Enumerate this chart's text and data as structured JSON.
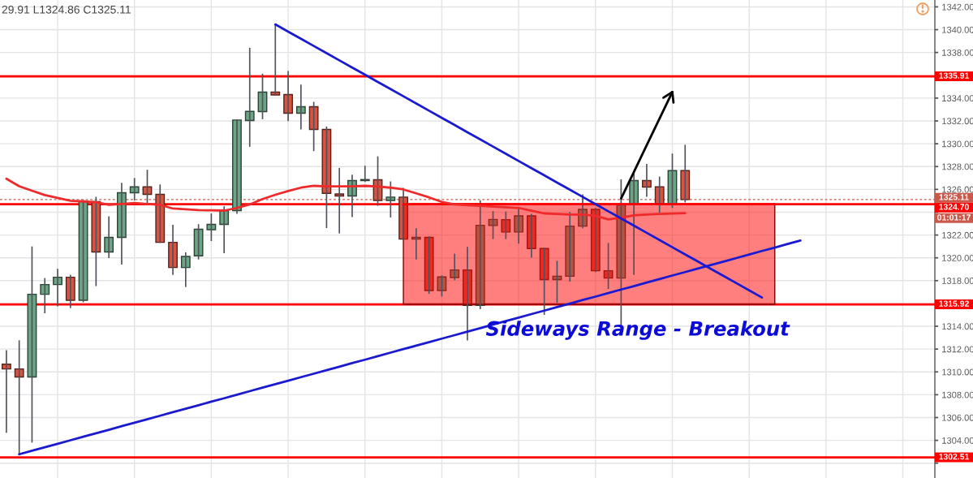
{
  "chart_data": {
    "type": "candlestick",
    "categories": [
      null,
      null,
      null,
      null,
      null,
      null,
      null,
      null,
      null,
      null,
      null,
      null,
      null,
      null,
      null,
      null,
      null,
      null,
      null,
      null,
      null,
      null,
      null,
      null,
      null,
      null,
      null,
      null,
      null,
      null,
      null,
      null,
      null,
      null,
      null,
      null,
      null,
      null,
      null,
      null,
      null,
      null,
      null,
      null,
      null,
      null,
      null,
      null,
      null,
      null,
      null,
      null,
      null,
      null,
      null,
      null,
      null,
      null,
      null,
      null,
      null,
      null,
      null,
      null,
      null,
      null,
      null,
      null,
      null,
      null,
      null,
      null,
      null
    ],
    "ohlc": [
      [
        1310.68,
        1311.91,
        1304.66,
        1310.26
      ],
      [
        1310.26,
        1312.77,
        1302.78,
        1309.56
      ],
      [
        1309.56,
        1321.0,
        1303.8,
        1316.8
      ],
      [
        1316.8,
        1318.23,
        1315.14,
        1317.66
      ],
      [
        1317.66,
        1319.03,
        1315.74,
        1318.3
      ],
      [
        1318.3,
        1318.51,
        1315.59,
        1316.28
      ],
      [
        1316.28,
        1325.08,
        1316.11,
        1324.96
      ],
      [
        1324.92,
        1325.35,
        1317.52,
        1320.51
      ],
      [
        1320.51,
        1323.64,
        1319.98,
        1321.79
      ],
      [
        1321.79,
        1326.58,
        1319.41,
        1325.7
      ],
      [
        1325.7,
        1327.0,
        1325.03,
        1326.22
      ],
      [
        1326.22,
        1327.72,
        1324.8,
        1325.56
      ],
      [
        1325.56,
        1326.43,
        1321.31,
        1321.36
      ],
      [
        1321.36,
        1322.9,
        1318.51,
        1319.15
      ],
      [
        1319.15,
        1320.48,
        1317.44,
        1320.12
      ],
      [
        1320.17,
        1322.95,
        1319.86,
        1322.5
      ],
      [
        1322.47,
        1323.89,
        1321.47,
        1322.93
      ],
      [
        1322.93,
        1324.51,
        1320.41,
        1324.14
      ],
      [
        1324.14,
        1332.15,
        1323.85,
        1332.08
      ],
      [
        1332.04,
        1338.41,
        1329.73,
        1332.84
      ],
      [
        1332.82,
        1336.14,
        1332.15,
        1334.53
      ],
      [
        1334.53,
        1340.46,
        1334.24,
        1334.28
      ],
      [
        1334.31,
        1336.38,
        1331.99,
        1332.68
      ],
      [
        1332.68,
        1335.19,
        1331.25,
        1333.25
      ],
      [
        1333.25,
        1333.67,
        1329.35,
        1331.25
      ],
      [
        1331.25,
        1331.51,
        1322.61,
        1325.65
      ],
      [
        1325.6,
        1327.88,
        1322.14,
        1325.42
      ],
      [
        1325.42,
        1327.29,
        1323.57,
        1326.77
      ],
      [
        1326.77,
        1328.07,
        1326.65,
        1326.86
      ],
      [
        1326.84,
        1328.9,
        1324.56,
        1325.03
      ],
      [
        1325.03,
        1326.7,
        1323.54,
        1325.32
      ],
      [
        1325.32,
        1326.13,
        1321.52,
        1321.64
      ],
      [
        1321.64,
        1322.59,
        1319.86,
        1321.79
      ],
      [
        1321.79,
        1321.88,
        1316.85,
        1317.13
      ],
      [
        1317.13,
        1318.46,
        1316.61,
        1318.32
      ],
      [
        1318.27,
        1320.36,
        1318.04,
        1318.94
      ],
      [
        1318.94,
        1320.95,
        1312.75,
        1315.83
      ],
      [
        1315.83,
        1325.03,
        1315.5,
        1322.85
      ],
      [
        1322.83,
        1324.09,
        1321.64,
        1323.37
      ],
      [
        1323.35,
        1324.06,
        1321.64,
        1322.26
      ],
      [
        1322.26,
        1324.44,
        1321.24,
        1323.68
      ],
      [
        1323.68,
        1323.85,
        1320.01,
        1320.81
      ],
      [
        1320.81,
        1320.88,
        1315.0,
        1318.09
      ],
      [
        1318.09,
        1319.74,
        1316.06,
        1318.39
      ],
      [
        1318.39,
        1324.01,
        1317.91,
        1322.78
      ],
      [
        1322.78,
        1325.56,
        1322.59,
        1324.25
      ],
      [
        1324.25,
        1324.37,
        1318.75,
        1318.87
      ],
      [
        1318.87,
        1321.31,
        1317.27,
        1318.23
      ],
      [
        1318.23,
        1326.88,
        1314.0,
        1324.63
      ],
      [
        1324.75,
        1327.41,
        1318.51,
        1326.77
      ],
      [
        1326.77,
        1328.23,
        1325.35,
        1326.2
      ],
      [
        1326.22,
        1327.12,
        1323.96,
        1324.75
      ],
      [
        1324.75,
        1329.14,
        1324.37,
        1327.64
      ],
      [
        1327.64,
        1329.91,
        1324.86,
        1325.11
      ],
      null,
      null,
      null,
      null,
      null,
      null,
      null,
      null,
      null,
      null,
      null,
      null,
      null,
      null,
      null,
      null,
      null,
      null,
      null
    ],
    "colors": [
      "#d75442",
      "#d75442",
      "#6ba583",
      "#6ba583",
      "#6ba583",
      "#d75442",
      "#6ba583",
      "#d75442",
      "#6ba583",
      "#6ba583",
      "#6ba583",
      "#d75442",
      "#d75442",
      "#d75442",
      "#6ba583",
      "#6ba583",
      "#6ba583",
      "#6ba583",
      "#6ba583",
      "#6ba583",
      "#6ba583",
      "#d75442",
      "#d75442",
      "#6ba583",
      "#d75442",
      "#d75442",
      "#d75442",
      "#6ba583",
      "#6ba583",
      "#d75442",
      "#6ba583",
      "#d75442",
      "#6ba583",
      "#d75442",
      "#6ba583",
      "#6ba583",
      "#d75442",
      "#6ba583",
      "#6ba583",
      "#d75442",
      "#6ba583",
      "#d75442",
      "#d75442",
      "#6ba583",
      "#6ba583",
      "#6ba583",
      "#d75442",
      "#d75442",
      "#6ba583",
      "#6ba583",
      "#d75442",
      "#d75442",
      "#6ba583",
      "#d75442",
      null,
      null,
      null,
      null,
      null,
      null,
      null,
      null,
      null,
      null,
      null,
      null,
      null,
      null,
      null,
      null,
      null,
      null,
      null
    ],
    "series": [
      {
        "type": "line",
        "color": "#ff0000",
        "values": [
          null,
          null,
          null,
          null,
          null,
          null,
          null,
          null,
          null,
          null,
          null,
          null,
          null,
          null,
          null,
          null,
          null,
          null,
          null,
          null,
          null,
          null,
          null,
          null,
          null,
          null,
          null,
          null,
          null,
          null,
          null,
          1324.7,
          1324.7,
          1324.7,
          1324.7,
          1324.7,
          1324.7,
          1324.7,
          1324.7,
          1324.7,
          1324.7,
          1324.7,
          1324.7,
          1324.7,
          1324.7,
          1324.7,
          1324.7,
          1324.7,
          1324.7,
          1324.7,
          1324.7,
          1324.7,
          1324.7,
          1324.7,
          1324.7,
          1324.7,
          1324.7,
          1324.7,
          1324.7,
          1324.7,
          1324.7,
          null,
          null,
          null,
          null,
          null,
          null,
          null,
          null,
          null,
          null,
          null,
          null
        ],
        "upper": [
          null,
          null,
          null,
          null,
          null,
          null,
          null,
          null,
          null,
          null,
          null,
          null,
          null,
          null,
          null,
          null,
          null,
          null,
          null,
          null,
          null,
          null,
          null,
          null,
          null,
          null,
          null,
          null,
          null,
          null,
          null,
          1324.7,
          1324.7,
          1324.7,
          1324.7,
          1324.7,
          1324.7,
          1324.7,
          1324.7,
          1324.7,
          1324.7,
          1324.7,
          1324.7,
          1324.7,
          1324.7,
          1324.7,
          1324.7,
          1324.7,
          1324.7,
          1324.7,
          1324.7,
          1324.7,
          1324.7,
          1324.7,
          1324.7,
          1324.7,
          1324.7,
          1324.7,
          1324.7,
          1324.7,
          1324.7,
          null,
          null,
          null,
          null,
          null,
          null,
          null,
          null,
          null,
          null,
          null,
          null
        ],
        "lower": [
          null,
          null,
          null,
          null,
          null,
          null,
          null,
          null,
          null,
          null,
          null,
          null,
          null,
          null,
          null,
          null,
          null,
          null,
          null,
          null,
          null,
          null,
          null,
          null,
          null,
          null,
          null,
          null,
          null,
          null,
          null,
          1315.92,
          1315.92,
          1315.92,
          1315.92,
          1315.92,
          1315.92,
          1315.92,
          1315.92,
          1315.92,
          1315.92,
          1315.92,
          1315.92,
          1315.92,
          1315.92,
          1315.92,
          1315.92,
          1315.92,
          1315.92,
          1315.92,
          1315.92,
          1315.92,
          1315.92,
          1315.92,
          1315.92,
          1315.92,
          1315.92,
          1315.92,
          1315.92,
          1315.92,
          1315.92,
          null,
          null,
          null,
          null,
          null,
          null,
          null,
          null,
          null,
          null,
          null,
          null
        ]
      },
      {
        "type": "line",
        "color": "#ee2a2a",
        "values": [
          1326.93,
          1326.27,
          1325.88,
          1325.5,
          1325.25,
          1325.0,
          1324.94,
          1324.87,
          1324.65,
          1324.72,
          1324.8,
          1324.72,
          1324.65,
          1324.32,
          1324.25,
          1324.18,
          1324.16,
          1324.14,
          1324.37,
          1324.68,
          1325.15,
          1325.53,
          1325.86,
          1326.15,
          1326.31,
          1326.27,
          1326.27,
          1326.27,
          1326.31,
          1326.25,
          1326.15,
          1325.99,
          1325.65,
          1325.3,
          1324.9,
          1324.68,
          1324.61,
          1324.55,
          1324.49,
          1324.43,
          1324.37,
          1324.13,
          1323.89,
          1323.85,
          1323.8,
          1323.8,
          1323.68,
          1323.37,
          1323.52,
          1323.73,
          1323.8,
          1323.85,
          1323.88,
          1323.92,
          null,
          null,
          null,
          null,
          null,
          null,
          null,
          null,
          null,
          null,
          null,
          null,
          null,
          null,
          null,
          null,
          null,
          null,
          null
        ]
      },
      {
        "type": "line",
        "color": "#1a1ad0",
        "values": [
          null,
          null,
          null,
          null,
          null,
          null,
          null,
          null,
          null,
          null,
          null,
          null,
          null,
          null,
          null,
          null,
          null,
          null,
          null,
          null,
          null,
          1340.46,
          1339.83,
          1339.2,
          1338.57,
          1337.94,
          1337.31,
          1336.68,
          1336.05,
          1335.42,
          1334.79,
          1334.16,
          1333.53,
          1332.9,
          1332.27,
          1331.64,
          1331.01,
          1330.38,
          1329.75,
          1329.12,
          1328.49,
          1327.86,
          1327.23,
          1326.6,
          1325.97,
          1325.34,
          1324.71,
          1324.08,
          1323.45,
          1322.82,
          1322.19,
          1321.56,
          1320.93,
          1320.3,
          1319.67,
          1319.04,
          1318.41,
          1317.78,
          1317.15,
          1316.52,
          null,
          null,
          null,
          null,
          null,
          null,
          null,
          null,
          null,
          null,
          null,
          null,
          null
        ]
      },
      {
        "type": "line",
        "color": "#1a1ad0",
        "values": [
          null,
          1302.78,
          1303.09,
          1303.39,
          1303.7,
          1304.01,
          1304.32,
          1304.62,
          1304.93,
          1305.24,
          1305.54,
          1305.85,
          1306.16,
          1306.47,
          1306.77,
          1307.08,
          1307.39,
          1307.69,
          1308.0,
          1308.31,
          1308.62,
          1308.92,
          1309.23,
          1309.54,
          1309.84,
          1310.15,
          1310.46,
          1310.77,
          1311.07,
          1311.38,
          1311.69,
          1312.0,
          1312.3,
          1312.61,
          1312.92,
          1313.22,
          1313.53,
          1313.84,
          1314.15,
          1314.45,
          1314.76,
          1315.07,
          1315.37,
          1315.68,
          1315.99,
          1316.3,
          1316.6,
          1316.91,
          1317.22,
          1317.52,
          1317.83,
          1318.14,
          1318.45,
          1318.75,
          1319.06,
          1319.37,
          1319.67,
          1319.98,
          1320.29,
          1320.6,
          1320.9,
          1321.21,
          1321.52,
          null,
          null,
          null,
          null,
          null,
          null,
          null,
          null,
          null,
          null
        ]
      },
      {
        "type": "line",
        "color": "#000000",
        "values": [
          null,
          null,
          null,
          null,
          null,
          null,
          null,
          null,
          null,
          null,
          null,
          null,
          null,
          null,
          null,
          null,
          null,
          null,
          null,
          null,
          null,
          null,
          null,
          null,
          null,
          null,
          null,
          null,
          null,
          null,
          null,
          null,
          null,
          null,
          null,
          null,
          null,
          null,
          null,
          null,
          null,
          null,
          null,
          null,
          null,
          null,
          null,
          null,
          1325.2,
          1327.53,
          1329.87,
          1332.2,
          1334.53,
          null,
          null,
          null,
          null,
          null,
          null,
          null,
          null,
          null,
          null,
          null,
          null,
          null,
          null,
          null,
          null,
          null,
          null,
          null,
          null
        ]
      }
    ],
    "ref_lines": [
      {
        "axis": "y",
        "value": 1335.91,
        "label": "1335.91",
        "color": "#ff0000",
        "line_style": "solid"
      },
      {
        "axis": "y",
        "value": 1325.11,
        "label": "1325.11",
        "color": "#c9594a",
        "line_style": "dotted"
      },
      {
        "axis": "y",
        "value": 1324.7,
        "label": "1324.70",
        "color": "#ff0000",
        "line_style": "solid"
      },
      {
        "axis": "y",
        "value": 1315.92,
        "label": "1315.92",
        "color": "#ff0000",
        "line_style": "solid"
      },
      {
        "axis": "y",
        "value": 1302.51,
        "label": "1302.51",
        "color": "#ff0000",
        "line_style": "solid"
      }
    ],
    "annotations": [
      "29.91 L1324.86 C1325.11",
      "01:01:17",
      "Sideways Range - Breakout"
    ],
    "ylim": [
      1300.7,
      1342.6
    ],
    "yticks": [
      {
        "value": 1302,
        "label": null
      },
      {
        "value": 1304,
        "label": "1304.00"
      },
      {
        "value": 1306,
        "label": "1306.00"
      },
      {
        "value": 1308,
        "label": "1308.00"
      },
      {
        "value": 1310,
        "label": "1310.00"
      },
      {
        "value": 1312,
        "label": "1312.00"
      },
      {
        "value": 1314,
        "label": "1314.00"
      },
      {
        "value": 1316,
        "label": null
      },
      {
        "value": 1318,
        "label": "1318.00"
      },
      {
        "value": 1320,
        "label": "1320.00"
      },
      {
        "value": 1322,
        "label": "1322.00"
      },
      {
        "value": 1324,
        "label": null
      },
      {
        "value": 1326,
        "label": "1326.00"
      },
      {
        "value": 1328,
        "label": "1328.00"
      },
      {
        "value": 1330,
        "label": "1330.00"
      },
      {
        "value": 1332,
        "label": "1332.00"
      },
      {
        "value": 1334,
        "label": "1334.00"
      },
      {
        "value": 1336,
        "label": null
      },
      {
        "value": 1338,
        "label": "1338.00"
      },
      {
        "value": 1340,
        "label": "1340.00"
      },
      {
        "value": 1342,
        "label": "1342.00"
      }
    ],
    "grid": true,
    "tick_labels": "y"
  }
}
